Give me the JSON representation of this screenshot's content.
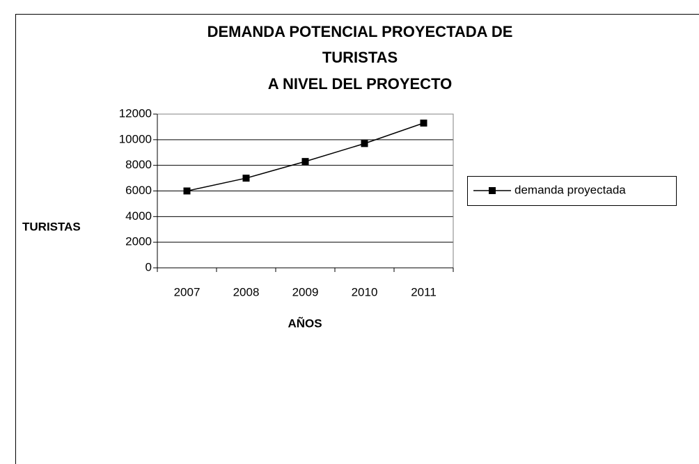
{
  "chart_data": {
    "type": "line",
    "title": [
      "DEMANDA POTENCIAL PROYECTADA DE",
      "TURISTAS",
      "A NIVEL DEL PROYECTO"
    ],
    "x_label": "AÑOS",
    "y_label": "TURISTAS",
    "categories": [
      "2007",
      "2008",
      "2009",
      "2010",
      "2011"
    ],
    "series": [
      {
        "name": "demanda proyectada",
        "color": "#000000",
        "values": [
          6000,
          7000,
          8300,
          9700,
          11300
        ]
      }
    ],
    "ylim": [
      0,
      12000
    ],
    "yticks": [
      0,
      2000,
      4000,
      6000,
      8000,
      10000,
      12000
    ],
    "grid": true,
    "legend": "right"
  }
}
